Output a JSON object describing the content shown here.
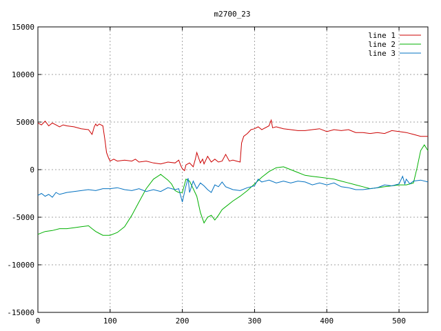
{
  "chart_data": {
    "type": "line",
    "title": "m2700_23",
    "xlabel": "",
    "ylabel": "",
    "xlim": [
      0,
      540
    ],
    "ylim": [
      -15000,
      15000
    ],
    "x_ticks": [
      0,
      100,
      200,
      300,
      400,
      500
    ],
    "y_ticks": [
      -15000,
      -10000,
      -5000,
      0,
      5000,
      10000,
      15000
    ],
    "grid": true,
    "legend_position": "top-right",
    "series": [
      {
        "name": "line 1",
        "color": "#cc0000",
        "x": [
          0,
          5,
          10,
          15,
          20,
          25,
          30,
          35,
          40,
          50,
          60,
          70,
          75,
          78,
          80,
          82,
          85,
          90,
          93,
          95,
          98,
          100,
          105,
          110,
          120,
          130,
          135,
          140,
          150,
          160,
          170,
          180,
          190,
          195,
          198,
          200,
          203,
          205,
          210,
          215,
          218,
          220,
          225,
          228,
          230,
          235,
          240,
          245,
          250,
          255,
          260,
          265,
          270,
          275,
          280,
          282,
          285,
          290,
          295,
          300,
          305,
          310,
          320,
          323,
          325,
          330,
          340,
          350,
          360,
          370,
          380,
          390,
          400,
          410,
          420,
          430,
          440,
          450,
          460,
          470,
          480,
          490,
          500,
          510,
          520,
          530,
          540
        ],
        "y": [
          4900,
          4700,
          5100,
          4600,
          4900,
          4700,
          4500,
          4700,
          4600,
          4500,
          4300,
          4200,
          3700,
          4500,
          4800,
          4600,
          4800,
          4600,
          3000,
          1800,
          1200,
          900,
          1100,
          900,
          1000,
          900,
          1100,
          800,
          900,
          700,
          600,
          800,
          700,
          1000,
          400,
          100,
          -100,
          500,
          700,
          300,
          1100,
          1800,
          700,
          1100,
          600,
          1400,
          800,
          1100,
          800,
          900,
          1600,
          900,
          1000,
          900,
          800,
          2800,
          3500,
          3800,
          4200,
          4300,
          4500,
          4200,
          4600,
          5200,
          4400,
          4500,
          4300,
          4200,
          4100,
          4100,
          4200,
          4300,
          4000,
          4200,
          4100,
          4200,
          3900,
          3900,
          3800,
          3900,
          3800,
          4100,
          4000,
          3900,
          3700,
          3500,
          3500
        ]
      },
      {
        "name": "line 2",
        "color": "#00b000",
        "x": [
          0,
          10,
          20,
          30,
          40,
          50,
          60,
          70,
          75,
          80,
          85,
          90,
          95,
          100,
          110,
          120,
          130,
          140,
          150,
          160,
          170,
          175,
          180,
          185,
          190,
          195,
          200,
          205,
          210,
          215,
          220,
          225,
          230,
          235,
          240,
          245,
          250,
          255,
          260,
          270,
          280,
          290,
          300,
          310,
          320,
          330,
          340,
          350,
          360,
          370,
          380,
          390,
          400,
          410,
          420,
          430,
          440,
          450,
          460,
          470,
          480,
          490,
          500,
          510,
          520,
          525,
          530,
          535,
          540
        ],
        "y": [
          -6800,
          -6500,
          -6400,
          -6200,
          -6200,
          -6100,
          -6000,
          -5900,
          -6200,
          -6500,
          -6700,
          -6900,
          -6900,
          -6900,
          -6600,
          -6000,
          -4800,
          -3400,
          -2000,
          -1000,
          -500,
          -800,
          -1100,
          -1500,
          -2200,
          -2400,
          -2400,
          -1000,
          -1200,
          -2000,
          -2800,
          -4500,
          -5600,
          -5000,
          -4800,
          -5300,
          -4800,
          -4200,
          -3900,
          -3300,
          -2800,
          -2200,
          -1500,
          -800,
          -200,
          200,
          300,
          0,
          -300,
          -600,
          -700,
          -800,
          -900,
          -1000,
          -1200,
          -1400,
          -1600,
          -1800,
          -2000,
          -1900,
          -1800,
          -1700,
          -1600,
          -1600,
          -1400,
          200,
          2000,
          2600,
          2000
        ]
      },
      {
        "name": "line 3",
        "color": "#0070c0",
        "x": [
          0,
          5,
          10,
          15,
          20,
          25,
          30,
          40,
          50,
          60,
          70,
          80,
          90,
          100,
          110,
          120,
          130,
          140,
          150,
          160,
          170,
          180,
          190,
          195,
          200,
          205,
          208,
          210,
          215,
          220,
          225,
          230,
          235,
          240,
          245,
          250,
          255,
          260,
          270,
          280,
          290,
          300,
          305,
          310,
          320,
          330,
          340,
          350,
          360,
          370,
          380,
          390,
          400,
          410,
          420,
          430,
          440,
          450,
          460,
          470,
          480,
          490,
          500,
          505,
          508,
          510,
          515,
          520,
          530,
          540
        ],
        "y": [
          -2700,
          -2500,
          -2800,
          -2600,
          -2900,
          -2400,
          -2600,
          -2400,
          -2300,
          -2200,
          -2100,
          -2200,
          -2000,
          -2000,
          -1900,
          -2100,
          -2200,
          -2000,
          -2300,
          -2100,
          -2300,
          -1900,
          -2100,
          -2000,
          -3400,
          -1700,
          -900,
          -2400,
          -1200,
          -2000,
          -1400,
          -1700,
          -2100,
          -2400,
          -1600,
          -1800,
          -1300,
          -1800,
          -2100,
          -2200,
          -1900,
          -1700,
          -1000,
          -1300,
          -1100,
          -1400,
          -1200,
          -1400,
          -1200,
          -1300,
          -1600,
          -1400,
          -1600,
          -1400,
          -1800,
          -1900,
          -2100,
          -2100,
          -2000,
          -1900,
          -1600,
          -1700,
          -1500,
          -700,
          -1500,
          -1000,
          -1500,
          -1200,
          -1100,
          -1300
        ]
      }
    ]
  }
}
